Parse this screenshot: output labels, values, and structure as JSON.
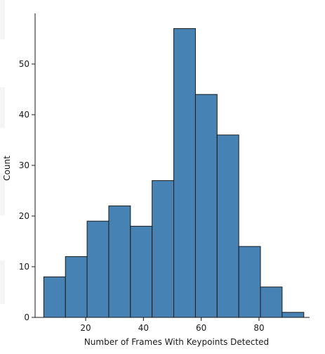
{
  "chart_data": {
    "type": "bar",
    "xlabel": "Number of Frames With Keypoints Detected",
    "ylabel": "Count",
    "xlim": [
      2.5,
      97.5
    ],
    "ylim": [
      0,
      60
    ],
    "xticks": [
      20,
      40,
      60,
      80
    ],
    "yticks": [
      0,
      10,
      20,
      30,
      40,
      50
    ],
    "bins": [
      {
        "start": 5.5,
        "end": 13.0,
        "count": 8
      },
      {
        "start": 13.0,
        "end": 20.5,
        "count": 12
      },
      {
        "start": 20.5,
        "end": 28.0,
        "count": 19
      },
      {
        "start": 28.0,
        "end": 35.5,
        "count": 22
      },
      {
        "start": 35.5,
        "end": 43.0,
        "count": 18
      },
      {
        "start": 43.0,
        "end": 50.5,
        "count": 27
      },
      {
        "start": 50.5,
        "end": 58.0,
        "count": 57
      },
      {
        "start": 58.0,
        "end": 65.5,
        "count": 44
      },
      {
        "start": 65.5,
        "end": 73.0,
        "count": 36
      },
      {
        "start": 73.0,
        "end": 80.5,
        "count": 14
      },
      {
        "start": 80.5,
        "end": 88.0,
        "count": 6
      },
      {
        "start": 88.0,
        "end": 95.5,
        "count": 1
      }
    ],
    "bar_color": "#4682b4",
    "edge_color": "#1a1a1a",
    "grid": false
  }
}
